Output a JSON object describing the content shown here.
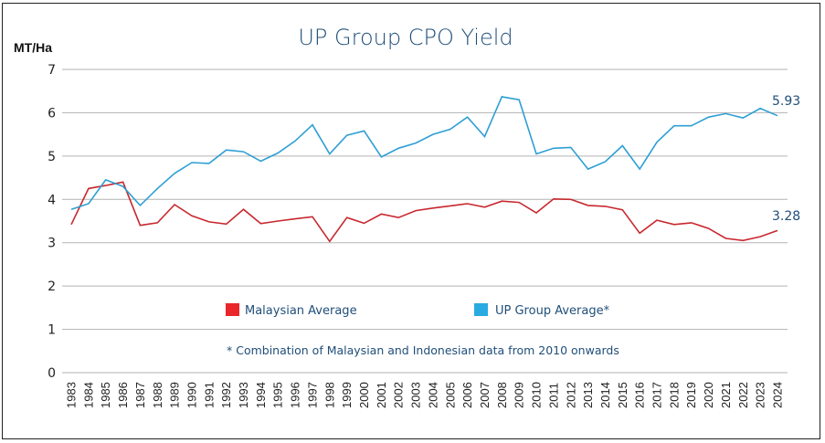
{
  "chart_data": {
    "type": "line",
    "title": "UP Group CPO Yield",
    "xlabel": "",
    "ylabel": "MT/Ha",
    "ylim": [
      0,
      7
    ],
    "yticks": [
      "0",
      "1",
      "2",
      "3",
      "4",
      "5",
      "6",
      "7"
    ],
    "grid": true,
    "x": [
      "1983",
      "1984",
      "1985",
      "1986",
      "1987",
      "1988",
      "1989",
      "1990",
      "1991",
      "1992",
      "1993",
      "1994",
      "1995",
      "1996",
      "1997",
      "1998",
      "1999",
      "2000",
      "2001",
      "2002",
      "2003",
      "2004",
      "2005",
      "2006",
      "2007",
      "2008",
      "2009",
      "2010",
      "2011",
      "2012",
      "2013",
      "2014",
      "2015",
      "2016",
      "2017",
      "2018",
      "2019",
      "2020",
      "2021",
      "2022",
      "2023",
      "2024"
    ],
    "series": [
      {
        "name": "Malaysian Average",
        "color": "#c8282e",
        "legend_color": "#e8262b",
        "values": [
          3.42,
          4.25,
          4.32,
          4.4,
          3.4,
          3.46,
          3.88,
          3.62,
          3.48,
          3.43,
          3.77,
          3.44,
          3.5,
          3.55,
          3.6,
          3.03,
          3.58,
          3.45,
          3.66,
          3.58,
          3.74,
          3.8,
          3.85,
          3.9,
          3.82,
          3.96,
          3.93,
          3.69,
          4.01,
          4.0,
          3.86,
          3.84,
          3.76,
          3.22,
          3.52,
          3.42,
          3.46,
          3.33,
          3.1,
          3.05,
          3.14,
          3.28
        ],
        "end_label": "3.28"
      },
      {
        "name": "UP Group Average*",
        "color": "#2e9fd4",
        "legend_color": "#29abe2",
        "values": [
          3.77,
          3.9,
          4.45,
          4.3,
          3.86,
          4.25,
          4.6,
          4.85,
          4.83,
          5.14,
          5.1,
          4.88,
          5.07,
          5.35,
          5.72,
          5.05,
          5.48,
          5.58,
          4.98,
          5.18,
          5.3,
          5.5,
          5.62,
          5.9,
          5.45,
          6.37,
          6.3,
          5.05,
          5.18,
          5.2,
          4.7,
          4.87,
          5.24,
          4.7,
          5.32,
          5.7,
          5.7,
          5.9,
          5.98,
          5.88,
          6.1,
          5.93
        ],
        "end_label": "5.93"
      }
    ],
    "legend": "center",
    "footnote": "* Combination of Malaysian and Indonesian data from 2010 onwards"
  }
}
